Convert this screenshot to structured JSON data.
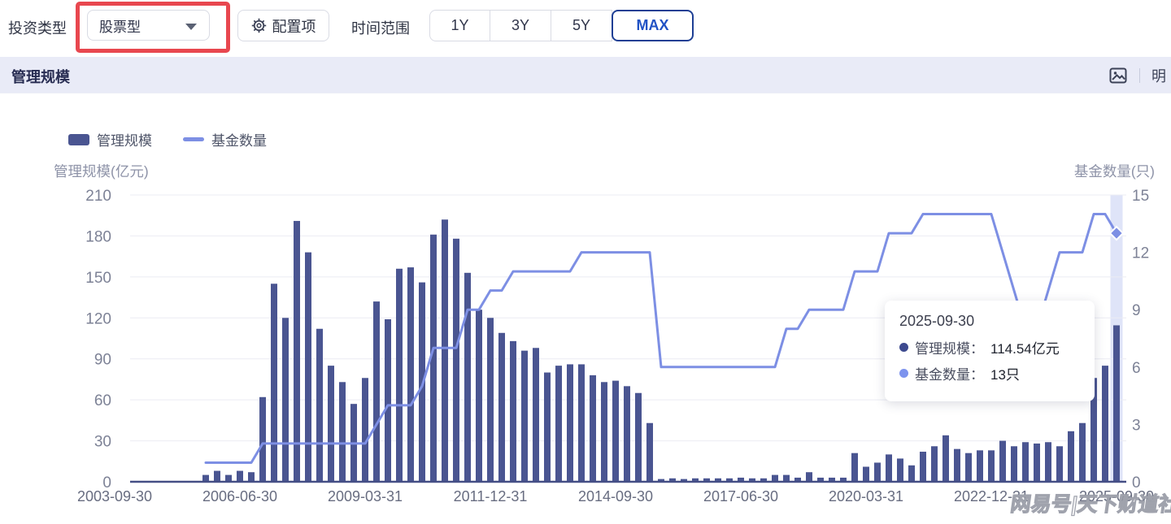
{
  "topbar": {
    "investment_type_label": "投资类型",
    "dropdown_value": "股票型",
    "config_button": "配置项",
    "time_range_label": "时间范围",
    "range_options": [
      "1Y",
      "3Y",
      "5Y",
      "MAX"
    ],
    "selected_range": "MAX"
  },
  "panel": {
    "title": "管理规模",
    "header_action_truncated": "明"
  },
  "tooltip": {
    "date": "2025-09-30",
    "rows": [
      {
        "label": "管理规模：",
        "value": "114.54亿元",
        "color": "#3d4a8f"
      },
      {
        "label": "基金数量：",
        "value": "13只",
        "color": "#7d93ee"
      }
    ]
  },
  "watermark": "网易号|天下财道社",
  "chart_data": {
    "type": "bar",
    "title": "管理规模",
    "x_start": "2003-09-30",
    "x_interval": "quarter",
    "x_ticks": [
      {
        "index": 0,
        "label": "2003-09-30"
      },
      {
        "index": 11,
        "label": "2006-06-30"
      },
      {
        "index": 22,
        "label": "2009-03-31"
      },
      {
        "index": 33,
        "label": "2011-12-31"
      },
      {
        "index": 44,
        "label": "2014-09-30"
      },
      {
        "index": 55,
        "label": "2017-06-30"
      },
      {
        "index": 66,
        "label": "2020-03-31"
      },
      {
        "index": 77,
        "label": "2022-12-31"
      },
      {
        "index": 88,
        "label": "2025-09-30"
      }
    ],
    "y_left": {
      "label": "管理规模(亿元)",
      "ticks": [
        0,
        30,
        60,
        90,
        120,
        150,
        180,
        210
      ],
      "max": 210
    },
    "y_right": {
      "label": "基金数量(只)",
      "ticks": [
        0,
        3,
        6,
        9,
        12,
        15
      ],
      "max": 15
    },
    "grid": true,
    "legend_position": "top-left",
    "highlight_index": 88,
    "colors": {
      "bar": "#4a5591",
      "line": "#7d8fe4",
      "highlight_band": "#dfe4f8",
      "axis": "#454f85",
      "grid": "#ebecf3"
    },
    "series": [
      {
        "name": "管理规模",
        "type": "bar",
        "unit": "亿元",
        "color": "#4a5591",
        "values": [
          0,
          0,
          0,
          0,
          0,
          0,
          0,
          0,
          5,
          8,
          5,
          8,
          7,
          62,
          145,
          120,
          191,
          168,
          112,
          85,
          73,
          57,
          76,
          132,
          119,
          156,
          157,
          146,
          181,
          192,
          178,
          153,
          126,
          120,
          109,
          103,
          96,
          98,
          80,
          85,
          86,
          86,
          78,
          73,
          74,
          70,
          65,
          43,
          2,
          2.5,
          2,
          2.5,
          2.5,
          2.5,
          2.5,
          3,
          2.5,
          2.5,
          5,
          5,
          3,
          7,
          3,
          3,
          3,
          21,
          11,
          14,
          20,
          17,
          12,
          22,
          26,
          34,
          24,
          21,
          23,
          23,
          30,
          26,
          29,
          28,
          29,
          26,
          37,
          43,
          76,
          85,
          114.54
        ]
      },
      {
        "name": "基金数量",
        "type": "line",
        "unit": "只",
        "color": "#7d8fe4",
        "values": [
          null,
          null,
          null,
          null,
          null,
          null,
          null,
          null,
          1,
          1,
          1,
          1,
          1,
          2,
          2,
          2,
          2,
          2,
          2,
          2,
          2,
          2,
          2,
          3,
          4,
          4,
          4,
          5,
          7,
          7,
          7,
          9,
          9,
          10,
          10,
          11,
          11,
          11,
          11,
          11,
          11,
          12,
          12,
          12,
          12,
          12,
          12,
          12,
          6,
          6,
          6,
          6,
          6,
          6,
          6,
          6,
          6,
          6,
          6,
          8,
          8,
          9,
          9,
          9,
          9,
          11,
          11,
          11,
          13,
          13,
          13,
          14,
          14,
          14,
          14,
          14,
          14,
          14,
          12,
          10,
          8,
          8,
          10,
          12,
          12,
          12,
          14,
          14,
          13
        ]
      }
    ]
  }
}
